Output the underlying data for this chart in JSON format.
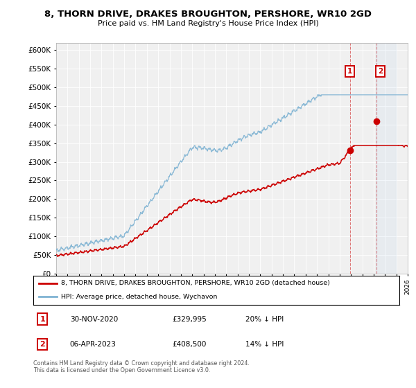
{
  "title": "8, THORN DRIVE, DRAKES BROUGHTON, PERSHORE, WR10 2GD",
  "subtitle": "Price paid vs. HM Land Registry's House Price Index (HPI)",
  "legend_label_red": "8, THORN DRIVE, DRAKES BROUGHTON, PERSHORE, WR10 2GD (detached house)",
  "legend_label_blue": "HPI: Average price, detached house, Wychavon",
  "transaction_1_date": "30-NOV-2020",
  "transaction_1_price": "£329,995",
  "transaction_1_hpi": "20% ↓ HPI",
  "transaction_2_date": "06-APR-2023",
  "transaction_2_price": "£408,500",
  "transaction_2_hpi": "14% ↓ HPI",
  "footnote": "Contains HM Land Registry data © Crown copyright and database right 2024.\nThis data is licensed under the Open Government Licence v3.0.",
  "ylim_min": 0,
  "ylim_max": 620000,
  "background_color": "#ffffff",
  "plot_bg_color": "#f0f0f0",
  "grid_color": "#ffffff",
  "red_color": "#cc0000",
  "blue_color": "#7fb3d3",
  "transaction1_year": 2020.92,
  "transaction2_year": 2023.27,
  "transaction1_price_val": 329995,
  "transaction2_price_val": 408500,
  "xmin": 1995,
  "xmax": 2026
}
